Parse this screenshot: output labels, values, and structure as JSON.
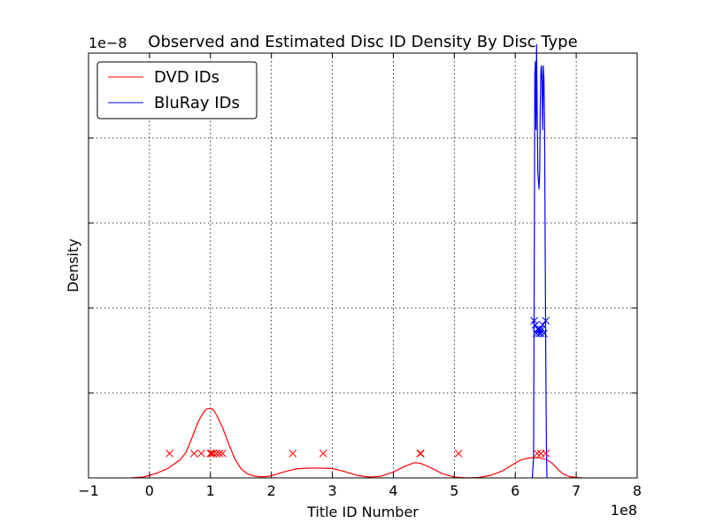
{
  "chart_data": {
    "type": "line",
    "title": "Observed and Estimated Disc ID Density By Disc Type",
    "xlabel": "Title ID Number",
    "ylabel": "Density",
    "x_multiplier_label": "1e8",
    "y_multiplier_label": "1e−8",
    "xlim": [
      -1,
      8
    ],
    "ylim": [
      0,
      1
    ],
    "x_ticks": [
      -1,
      0,
      1,
      2,
      3,
      4,
      5,
      6,
      7,
      8
    ],
    "x_tick_labels": [
      "−1",
      "0",
      "1",
      "2",
      "3",
      "4",
      "5",
      "6",
      "7",
      "8"
    ],
    "y_ticks": [
      0,
      0.2,
      0.4,
      0.6,
      0.8,
      1.0
    ],
    "grid": true,
    "legend_position": "top-left",
    "series": [
      {
        "name": "DVD IDs",
        "color": "#ff0000",
        "x": [
          -0.3,
          -0.1,
          0.1,
          0.3,
          0.5,
          0.6,
          0.7,
          0.8,
          0.9,
          0.95,
          1.0,
          1.05,
          1.1,
          1.2,
          1.3,
          1.4,
          1.5,
          1.6,
          1.7,
          1.8,
          1.9,
          2.0,
          2.2,
          2.4,
          2.6,
          2.8,
          3.0,
          3.2,
          3.4,
          3.6,
          3.8,
          4.0,
          4.2,
          4.35,
          4.45,
          4.6,
          4.8,
          5.0,
          5.2,
          5.4,
          5.6,
          5.8,
          6.0,
          6.1,
          6.2,
          6.3,
          6.4,
          6.5,
          6.6,
          6.7,
          6.8,
          6.9,
          7.0,
          7.1
        ],
        "values": [
          0.0,
          0.002,
          0.01,
          0.022,
          0.042,
          0.06,
          0.095,
          0.133,
          0.157,
          0.163,
          0.164,
          0.16,
          0.148,
          0.118,
          0.08,
          0.045,
          0.022,
          0.01,
          0.005,
          0.003,
          0.003,
          0.005,
          0.014,
          0.021,
          0.023,
          0.023,
          0.022,
          0.015,
          0.006,
          0.002,
          0.004,
          0.014,
          0.028,
          0.036,
          0.034,
          0.025,
          0.01,
          0.002,
          0.0,
          0.001,
          0.006,
          0.017,
          0.035,
          0.043,
          0.046,
          0.048,
          0.047,
          0.044,
          0.035,
          0.02,
          0.008,
          0.003,
          0.001,
          0.0
        ]
      },
      {
        "name": "BluRay IDs",
        "color": "#0000ff",
        "x": [
          6.28,
          6.3,
          6.31,
          6.32,
          6.33,
          6.34,
          6.35,
          6.36,
          6.37,
          6.38,
          6.39,
          6.4,
          6.41,
          6.42,
          6.43,
          6.44,
          6.45,
          6.46,
          6.47,
          6.48,
          6.49,
          6.5,
          6.51,
          6.52
        ],
        "values": [
          0.0,
          0.05,
          0.45,
          0.95,
          0.98,
          0.82,
          1.02,
          0.86,
          0.72,
          0.7,
          0.68,
          0.72,
          0.88,
          0.96,
          0.97,
          0.93,
          0.82,
          0.97,
          0.94,
          0.84,
          0.55,
          0.28,
          0.08,
          0.0
        ]
      }
    ],
    "observations": [
      {
        "series": "DVD IDs",
        "color": "#ff0000",
        "marker": "x",
        "x": [
          0.33,
          0.73,
          0.85,
          1.0,
          1.02,
          1.05,
          1.1,
          1.15,
          1.2,
          2.35,
          2.85,
          4.44,
          4.45,
          5.07,
          6.36,
          6.42,
          6.5
        ],
        "y": [
          0.0575,
          0.0575,
          0.0575,
          0.0575,
          0.0575,
          0.0575,
          0.0575,
          0.0575,
          0.0575,
          0.0575,
          0.0575,
          0.0575,
          0.0575,
          0.0575,
          0.0575,
          0.0575,
          0.0575
        ]
      },
      {
        "series": "BluRay IDs",
        "color": "#0000ff",
        "marker": "x",
        "x": [
          6.31,
          6.33,
          6.35,
          6.37,
          6.38,
          6.39,
          6.4,
          6.42,
          6.44,
          6.45,
          6.47,
          6.5
        ],
        "y": [
          0.37,
          0.36,
          0.34,
          0.35,
          0.35,
          0.34,
          0.35,
          0.34,
          0.35,
          0.36,
          0.34,
          0.37
        ]
      }
    ]
  }
}
